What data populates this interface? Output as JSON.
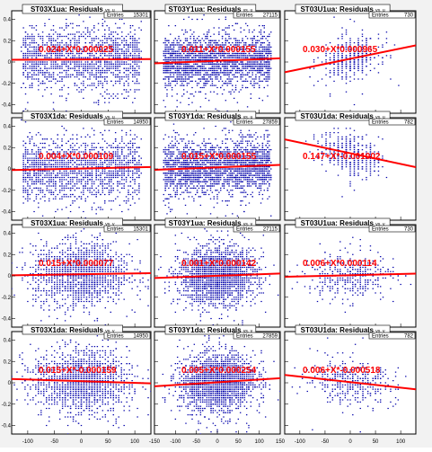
{
  "colors": {
    "points": "#0000aa",
    "fit": "#ff0000",
    "frame": "#000000",
    "background": "#f2f2f2"
  },
  "chart_data": {
    "type": "scatter",
    "layout": "4x3 grid of scatter plots with linear fits",
    "xlim_by_column": [
      [
        -130,
        130
      ],
      [
        -150,
        150
      ],
      [
        -130,
        130
      ]
    ],
    "ylim": [
      -0.48,
      0.48
    ],
    "x_ticks_by_column": [
      [
        -100,
        -50,
        0,
        50,
        100
      ],
      [
        -150,
        -100,
        -50,
        0,
        50,
        100,
        150
      ],
      [
        -100,
        -50,
        0,
        50,
        100
      ]
    ],
    "y_ticks": [
      -0.4,
      -0.2,
      0,
      0.2,
      0.4
    ],
    "panels": [
      {
        "title": "ST03X1ua: Residuals",
        "vs": "vs. u",
        "entries_label": "Entries",
        "entries": "15301",
        "fit_label": "0.024+X*0.000025",
        "intercept": 0.024,
        "slope": 2.5e-05,
        "spread": 0.14,
        "x_shape": "uniform",
        "npts": 1600
      },
      {
        "title": "ST03Y1ua: Residuals",
        "vs": "vs. u",
        "entries_label": "Entries",
        "entries": "27115",
        "fit_label": "0.011+X*0.000155",
        "intercept": 0.011,
        "slope": 0.000155,
        "spread": 0.12,
        "x_shape": "uniform",
        "npts": 2200
      },
      {
        "title": "ST03U1ua: Residuals",
        "vs": "vs. u",
        "entries_label": "Entries",
        "entries": "730",
        "fit_label": "0.030+X*0.000965",
        "intercept": 0.03,
        "slope": 0.000965,
        "spread": 0.09,
        "x_shape": "narrow",
        "npts": 400
      },
      {
        "title": "ST03X1da: Residuals",
        "vs": "vs. u",
        "entries_label": "Entries",
        "entries": "14950",
        "fit_label": "0.004+X*0.000109",
        "intercept": 0.004,
        "slope": 0.000109,
        "spread": 0.14,
        "x_shape": "uniform",
        "npts": 1600
      },
      {
        "title": "ST03Y1da: Residuals",
        "vs": "vs. u",
        "entries_label": "Entries",
        "entries": "27859",
        "fit_label": "0.015+X*0.000155",
        "intercept": 0.015,
        "slope": 0.000155,
        "spread": 0.12,
        "x_shape": "uniform",
        "npts": 2200
      },
      {
        "title": "ST03U1da: Residuals",
        "vs": "vs. u",
        "entries_label": "Entries",
        "entries": "782",
        "fit_label": "0.147+X*-0.001002",
        "intercept": 0.147,
        "slope": -0.001002,
        "spread": 0.09,
        "x_shape": "narrow",
        "npts": 400
      },
      {
        "title": "ST03X1ua: Residuals",
        "vs": "vs. v",
        "entries_label": "Entries",
        "entries": "15301",
        "fit_label": "0.015+X*0.000077",
        "intercept": 0.015,
        "slope": 7.7e-05,
        "spread": 0.14,
        "x_shape": "gauss",
        "npts": 1600
      },
      {
        "title": "ST03Y1ua: Residuals",
        "vs": "vs. v",
        "entries_label": "Entries",
        "entries": "27115",
        "fit_label": "0.001+X*0.000142",
        "intercept": 0.001,
        "slope": 0.000142,
        "spread": 0.12,
        "x_shape": "gauss",
        "npts": 2200
      },
      {
        "title": "ST03U1ua: Residuals",
        "vs": "vs. v",
        "entries_label": "Entries",
        "entries": "730",
        "fit_label": "0.006+X*0.000114",
        "intercept": 0.006,
        "slope": 0.000114,
        "spread": 0.09,
        "x_shape": "gauss",
        "npts": 400
      },
      {
        "title": "ST03X1da: Residuals",
        "vs": "vs. v",
        "entries_label": "Entries",
        "entries": "14950",
        "fit_label": "0.015+X*-0.000159",
        "intercept": 0.015,
        "slope": -0.000159,
        "spread": 0.14,
        "x_shape": "gauss",
        "npts": 1600
      },
      {
        "title": "ST03Y1da: Residuals",
        "vs": "vs. v",
        "entries_label": "Entries",
        "entries": "27859",
        "fit_label": "0.005+X*0.000254",
        "intercept": 0.005,
        "slope": 0.000254,
        "spread": 0.12,
        "x_shape": "gauss",
        "npts": 2200
      },
      {
        "title": "ST03U1da: Residuals",
        "vs": "vs. v",
        "entries_label": "Entries",
        "entries": "782",
        "fit_label": "0.006+X*-0.000518",
        "intercept": 0.006,
        "slope": -0.000518,
        "spread": 0.09,
        "x_shape": "gauss",
        "npts": 400
      }
    ]
  }
}
